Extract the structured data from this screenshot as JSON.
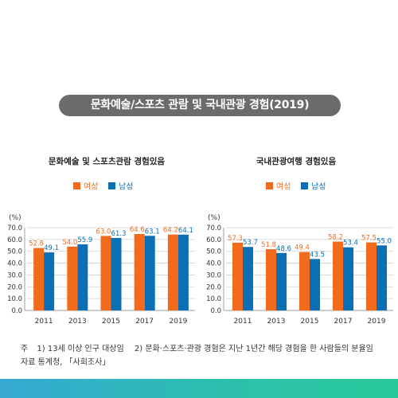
{
  "title": "문화예술/스포츠 관람 및 국내관광 경험(2019)",
  "legend": {
    "female": "여성",
    "male": "남성"
  },
  "colors": {
    "female": "#f26b1d",
    "male": "#0a6fb5",
    "title_bg": "#6b6b6b"
  },
  "notes": {
    "line1_prefix": "주",
    "line1_note1": "1) 13세 이상 인구 대상임",
    "line1_note2": "2) 문화·스포츠·관광 경험은 지난 1년간 해당 경험을 한 사람들의 분율임",
    "line2": "자료 통계청, 「사회조사」"
  },
  "chart_data": [
    {
      "type": "bar",
      "title": "문화예술 및 스포츠관람 경험있음",
      "unit": "(%)",
      "categories": [
        "2011",
        "2013",
        "2015",
        "2017",
        "2019"
      ],
      "series": [
        {
          "name": "여성",
          "values": [
            52.8,
            54.0,
            63.0,
            64.6,
            64.2
          ]
        },
        {
          "name": "남성",
          "values": [
            49.1,
            55.9,
            61.3,
            63.1,
            64.1
          ]
        }
      ],
      "yticks": [
        "0.0",
        "10.0",
        "20.0",
        "30.0",
        "40.0",
        "50.0",
        "60.0",
        "70.0"
      ],
      "ylim": [
        0,
        70
      ],
      "grid": true,
      "data_labels": true
    },
    {
      "type": "bar",
      "title": "국내관광여행 경험있음",
      "unit": "(%)",
      "categories": [
        "2011",
        "2013",
        "2015",
        "2017",
        "2019"
      ],
      "series": [
        {
          "name": "여성",
          "values": [
            57.3,
            51.8,
            49.4,
            58.2,
            57.5
          ]
        },
        {
          "name": "남성",
          "values": [
            53.7,
            48.6,
            43.5,
            53.4,
            55.0
          ]
        }
      ],
      "yticks": [
        "0.0",
        "10.0",
        "20.0",
        "30.0",
        "40.0",
        "50.0",
        "60.0",
        "70.0"
      ],
      "ylim": [
        0,
        70
      ],
      "grid": true,
      "data_labels": true
    }
  ]
}
